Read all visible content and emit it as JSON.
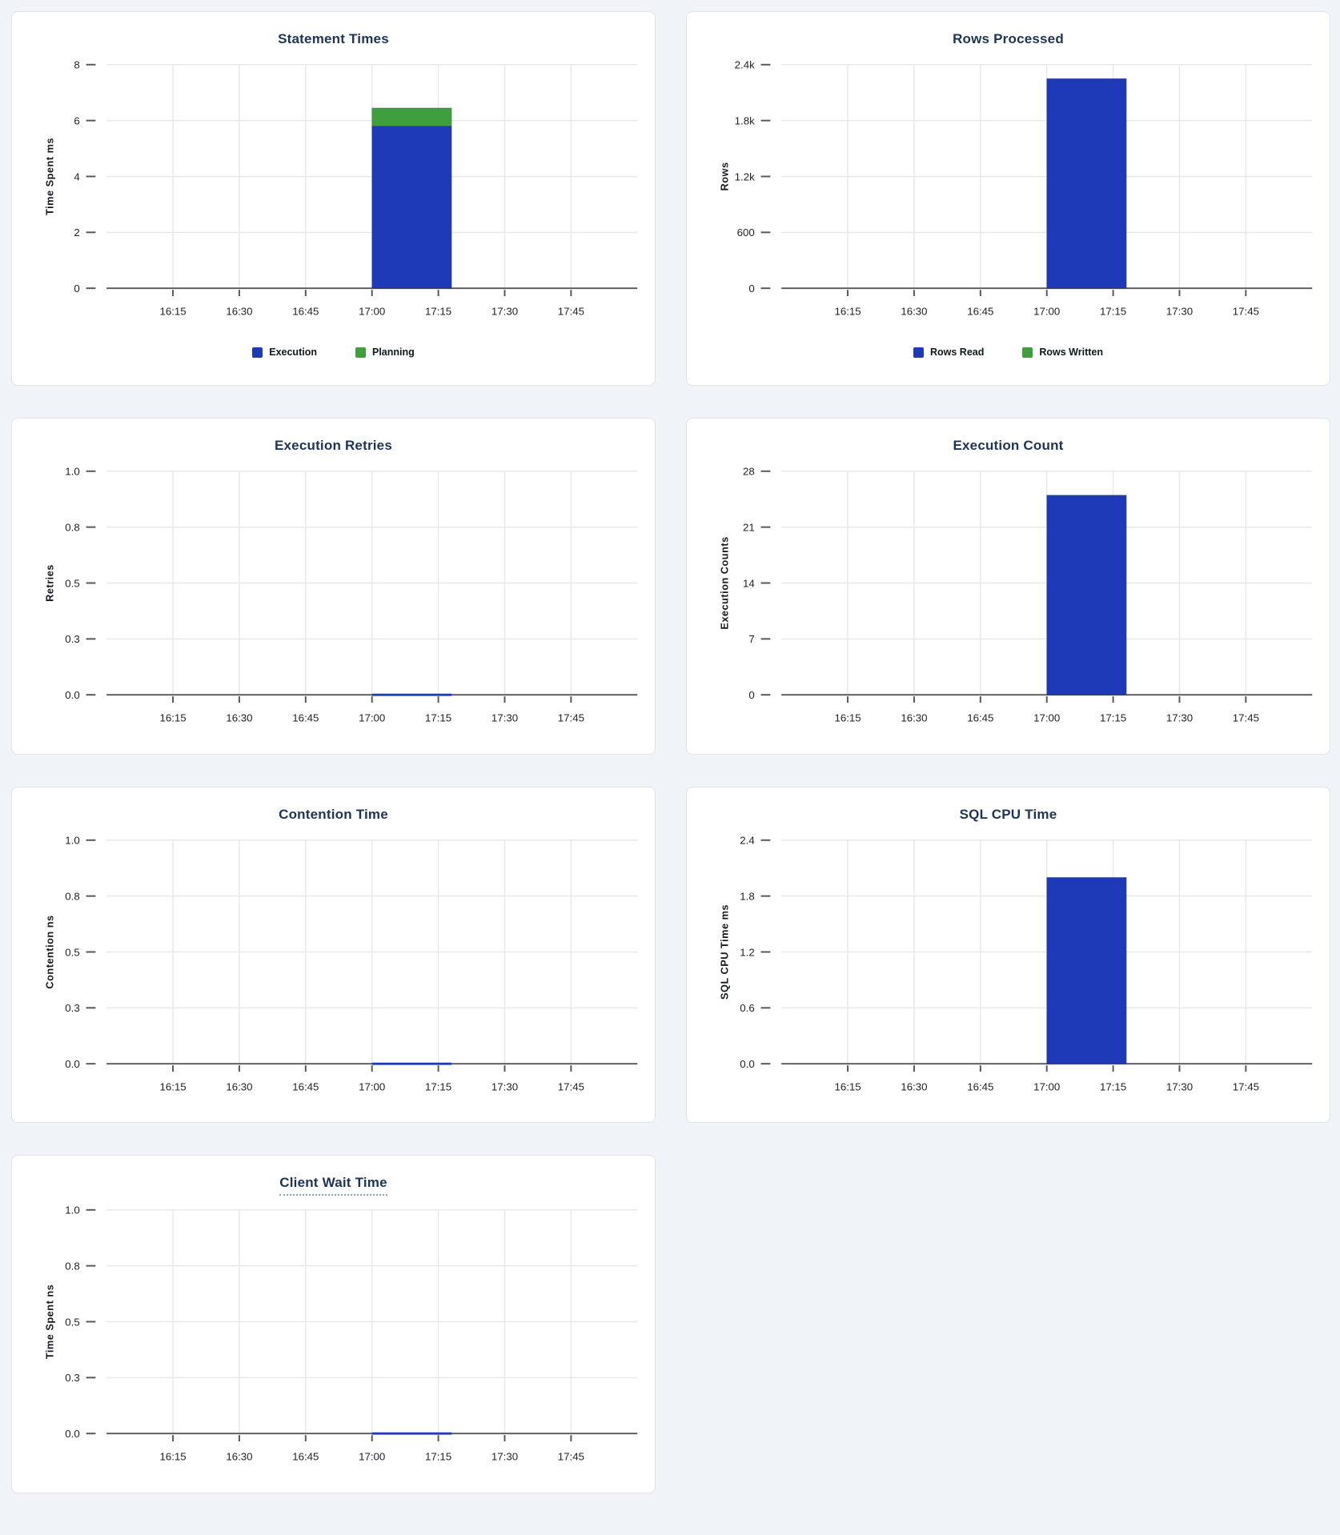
{
  "page": {
    "background_color": "#f0f3f7",
    "card_background": "#ffffff",
    "title_color": "#1e3456",
    "accent_blue": "#1e3ab8",
    "accent_green": "#3f9f3e"
  },
  "chart_data": [
    {
      "type": "bar",
      "title": "Statement Times",
      "title_underlined": false,
      "ylabel": "Time Spent ms",
      "y_tick_labels": [
        "0",
        "2",
        "4",
        "6",
        "8"
      ],
      "ylim": [
        0,
        8
      ],
      "x_tick_labels": [
        "16:15",
        "16:30",
        "16:45",
        "17:00",
        "17:15",
        "17:30",
        "17:45"
      ],
      "x_range": [
        "16:00",
        "18:00"
      ],
      "bar_span": [
        "17:00",
        "17:18"
      ],
      "stacked": true,
      "series": [
        {
          "name": "Execution",
          "color": "#1e3ab8",
          "value": 5.8
        },
        {
          "name": "Planning",
          "color": "#3f9f3e",
          "value": 0.65
        }
      ],
      "legend": {
        "visible": true,
        "position": "bottom",
        "entries": [
          "Execution",
          "Planning"
        ]
      }
    },
    {
      "type": "bar",
      "title": "Rows Processed",
      "title_underlined": false,
      "ylabel": "Rows",
      "y_tick_labels": [
        "0",
        "600",
        "1.2k",
        "1.8k",
        "2.4k"
      ],
      "ylim": [
        0,
        2400
      ],
      "x_tick_labels": [
        "16:15",
        "16:30",
        "16:45",
        "17:00",
        "17:15",
        "17:30",
        "17:45"
      ],
      "x_range": [
        "16:00",
        "18:00"
      ],
      "bar_span": [
        "17:00",
        "17:18"
      ],
      "stacked": true,
      "series": [
        {
          "name": "Rows Read",
          "color": "#1e3ab8",
          "value": 2250
        },
        {
          "name": "Rows Written",
          "color": "#3f9f3e",
          "value": 0
        }
      ],
      "legend": {
        "visible": true,
        "position": "bottom",
        "entries": [
          "Rows Read",
          "Rows Written"
        ]
      }
    },
    {
      "type": "line",
      "title": "Execution Retries",
      "title_underlined": false,
      "ylabel": "Retries",
      "y_tick_labels": [
        "0.0",
        "0.3",
        "0.5",
        "0.8",
        "1.0"
      ],
      "ylim": [
        0,
        1
      ],
      "x_tick_labels": [
        "16:15",
        "16:30",
        "16:45",
        "17:00",
        "17:15",
        "17:30",
        "17:45"
      ],
      "x_range": [
        "16:00",
        "18:00"
      ],
      "series": [
        {
          "name": "Retries",
          "color": "#1e3ab8",
          "points": [
            {
              "x": "17:00",
              "y": 0
            },
            {
              "x": "17:18",
              "y": 0
            }
          ]
        }
      ],
      "legend": {
        "visible": false,
        "entries": []
      }
    },
    {
      "type": "bar",
      "title": "Execution Count",
      "title_underlined": false,
      "ylabel": "Execution Counts",
      "y_tick_labels": [
        "0",
        "7",
        "14",
        "21",
        "28"
      ],
      "ylim": [
        0,
        28
      ],
      "x_tick_labels": [
        "16:15",
        "16:30",
        "16:45",
        "17:00",
        "17:15",
        "17:30",
        "17:45"
      ],
      "x_range": [
        "16:00",
        "18:00"
      ],
      "bar_span": [
        "17:00",
        "17:18"
      ],
      "stacked": true,
      "series": [
        {
          "name": "Execution Count",
          "color": "#1e3ab8",
          "value": 25
        }
      ],
      "legend": {
        "visible": false,
        "entries": []
      }
    },
    {
      "type": "line",
      "title": "Contention Time",
      "title_underlined": false,
      "ylabel": "Contention ns",
      "y_tick_labels": [
        "0.0",
        "0.3",
        "0.5",
        "0.8",
        "1.0"
      ],
      "ylim": [
        0,
        1
      ],
      "x_tick_labels": [
        "16:15",
        "16:30",
        "16:45",
        "17:00",
        "17:15",
        "17:30",
        "17:45"
      ],
      "x_range": [
        "16:00",
        "18:00"
      ],
      "series": [
        {
          "name": "Contention",
          "color": "#1e3ab8",
          "points": [
            {
              "x": "17:00",
              "y": 0
            },
            {
              "x": "17:18",
              "y": 0
            }
          ]
        }
      ],
      "legend": {
        "visible": false,
        "entries": []
      }
    },
    {
      "type": "bar",
      "title": "SQL CPU Time",
      "title_underlined": false,
      "ylabel": "SQL CPU Time ms",
      "y_tick_labels": [
        "0.0",
        "0.6",
        "1.2",
        "1.8",
        "2.4"
      ],
      "ylim": [
        0,
        2.4
      ],
      "x_tick_labels": [
        "16:15",
        "16:30",
        "16:45",
        "17:00",
        "17:15",
        "17:30",
        "17:45"
      ],
      "x_range": [
        "16:00",
        "18:00"
      ],
      "bar_span": [
        "17:00",
        "17:18"
      ],
      "stacked": true,
      "series": [
        {
          "name": "SQL CPU Time",
          "color": "#1e3ab8",
          "value": 2.0
        }
      ],
      "legend": {
        "visible": false,
        "entries": []
      }
    },
    {
      "type": "line",
      "title": "Client Wait Time",
      "title_underlined": true,
      "ylabel": "Time Spent ns",
      "y_tick_labels": [
        "0.0",
        "0.3",
        "0.5",
        "0.8",
        "1.0"
      ],
      "ylim": [
        0,
        1
      ],
      "x_tick_labels": [
        "16:15",
        "16:30",
        "16:45",
        "17:00",
        "17:15",
        "17:30",
        "17:45"
      ],
      "x_range": [
        "16:00",
        "18:00"
      ],
      "series": [
        {
          "name": "Client Wait",
          "color": "#1e3ab8",
          "points": [
            {
              "x": "17:00",
              "y": 0
            },
            {
              "x": "17:18",
              "y": 0
            }
          ]
        }
      ],
      "legend": {
        "visible": false,
        "entries": []
      }
    }
  ]
}
